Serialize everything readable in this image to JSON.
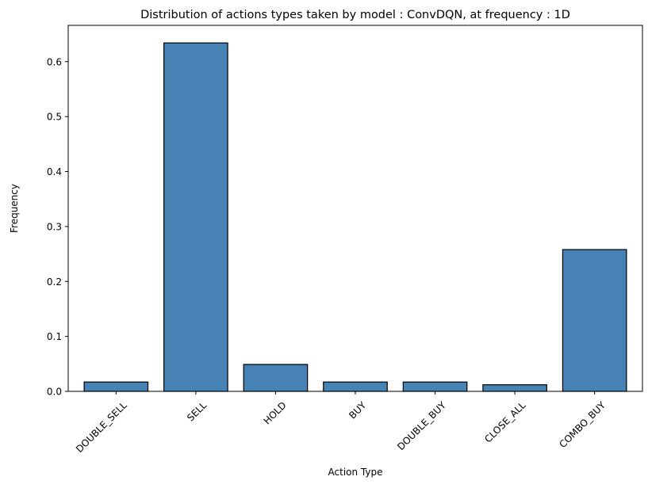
{
  "chart_data": {
    "type": "bar",
    "title": "Distribution of actions types taken by model : ConvDQN, at frequency : 1D",
    "xlabel": "Action Type",
    "ylabel": "Frequency",
    "categories": [
      "DOUBLE_SELL",
      "SELL",
      "HOLD",
      "BUY",
      "DOUBLE_BUY",
      "CLOSE_ALL",
      "COMBO_BUY"
    ],
    "values": [
      0.017,
      0.634,
      0.049,
      0.017,
      0.017,
      0.012,
      0.258
    ],
    "ylim": [
      0,
      0.666
    ],
    "yticks": [
      0.0,
      0.1,
      0.2,
      0.3,
      0.4,
      0.5,
      0.6
    ],
    "ytick_labels": [
      "0.0",
      "0.1",
      "0.2",
      "0.3",
      "0.4",
      "0.5",
      "0.6"
    ],
    "grid": false,
    "bar_color": "#4682b4",
    "bar_edge_color": "#000000",
    "xtick_rotation_deg": 45
  }
}
